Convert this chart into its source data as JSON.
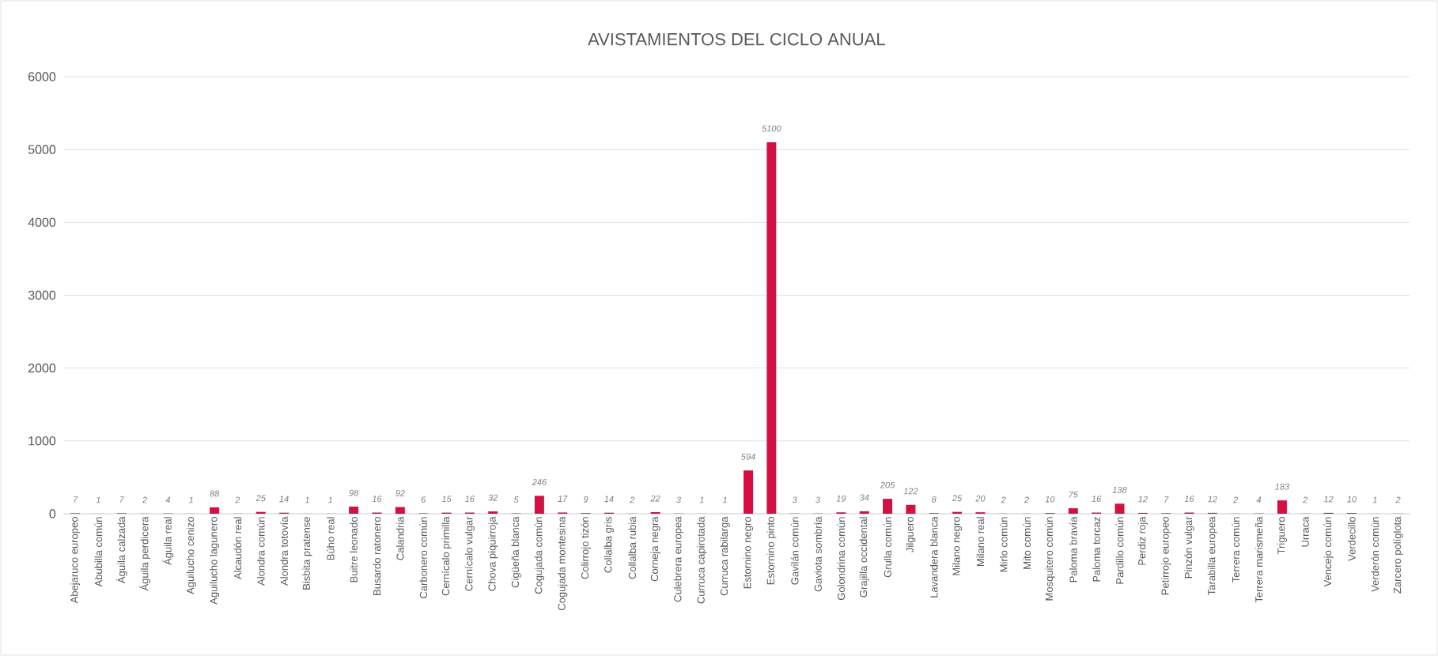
{
  "chart_data": {
    "type": "bar",
    "title": "AVISTAMIENTOS DEL CICLO ANUAL",
    "categories": [
      "Abejaruco europeo",
      "Abubilla común",
      "Águila calzada",
      "Águila perdicera",
      "Águila real",
      "Aguilucho cenizo",
      "Aguilucho lagunero",
      "Alcaudón real",
      "Alondra común",
      "Alondra totovía",
      "Bisbita pratense",
      "Búho real",
      "Buitre leonado",
      "Busardo ratonero",
      "Calandria",
      "Carbonero común",
      "Cernícalo primilla",
      "Cernícalo vulgar",
      "Chova piquirroja",
      "Cigüeña blanca",
      "Cogujada común",
      "Cogujada montesina",
      "Colirrojo tizón",
      "Collalba gris",
      "Collalba rubia",
      "Corneja negra",
      "Culebrera europea",
      "Curruca capirotada",
      "Curruca rabilarga",
      "Estornino negro",
      "Estornino pinto",
      "Gavilán común",
      "Gaviota sombría",
      "Golondrina común",
      "Grajilla occidental",
      "Grulla común",
      "Jilguero",
      "Lavandera blanca",
      "Milano negro",
      "Milano real",
      "Mirlo común",
      "Mito común",
      "Mosquitero común",
      "Paloma bravía",
      "Paloma torcaz",
      "Pardillo común",
      "Perdiz roja",
      "Petirrojo europeo",
      "Pinzón vulgar",
      "Tarabilla europea",
      "Terrera común",
      "Terrera marismeña",
      "Triguero",
      "Urraca",
      "Vencejo común",
      "Verdecillo",
      "Verderón común",
      "Zarcero políglota"
    ],
    "values": [
      7,
      1,
      7,
      2,
      4,
      1,
      88,
      2,
      25,
      14,
      1,
      1,
      98,
      16,
      92,
      6,
      15,
      16,
      32,
      5,
      246,
      17,
      9,
      14,
      2,
      22,
      3,
      1,
      1,
      594,
      5100,
      3,
      3,
      19,
      34,
      205,
      122,
      8,
      25,
      20,
      2,
      2,
      10,
      75,
      16,
      138,
      12,
      7,
      16,
      12,
      2,
      4,
      183,
      2,
      12,
      10,
      1,
      2
    ],
    "color": "#d50f41",
    "ylim": [
      0,
      6000
    ],
    "yticks": [
      0,
      1000,
      2000,
      3000,
      4000,
      5000,
      6000
    ],
    "grid": "y",
    "data_labels": true
  }
}
